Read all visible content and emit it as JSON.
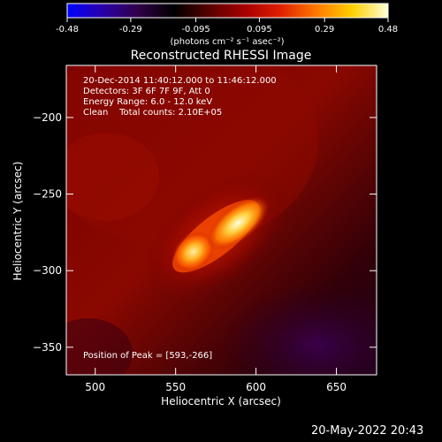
{
  "colorbar": {
    "ticks": [
      "-0.48",
      "-0.29",
      "-0.095",
      "0.095",
      "0.29",
      "0.48"
    ],
    "tick_values": [
      -0.48,
      -0.29,
      -0.095,
      0.095,
      0.29,
      0.48
    ],
    "unit_label": "(photons cm⁻² s⁻¹ asec⁻²)",
    "stops": [
      "#0000ff",
      "#2a00a8",
      "#300048",
      "#000000",
      "#5a0000",
      "#a80000",
      "#e02000",
      "#ff7a00",
      "#ffd000",
      "#ffffd8"
    ]
  },
  "chart_data": {
    "type": "heatmap",
    "title": "Reconstructed RHESSI Image",
    "xlabel": "Heliocentric X (arcsec)",
    "ylabel": "Heliocentric Y (arcsec)",
    "xlim": [
      482,
      675
    ],
    "ylim": [
      -368,
      -166
    ],
    "x_ticks": [
      500,
      550,
      600,
      650
    ],
    "y_ticks": [
      -350,
      -300,
      -250,
      -200
    ],
    "x_tick_labels": [
      "500",
      "550",
      "600",
      "650"
    ],
    "y_tick_labels": [
      "−350",
      "−300",
      "−250",
      "−200"
    ],
    "peak": [
      593,
      -266
    ],
    "sources": [
      {
        "x": 590,
        "y": -265,
        "value": 0.48
      },
      {
        "x": 560,
        "y": -290,
        "value": 0.4
      }
    ],
    "annotations": [
      "20-Dec-2014 11:40:12.000 to 11:46:12.000",
      "Detectors: 3F 6F 7F 9F, Att 0",
      "Energy Range: 6.0 - 12.0 keV",
      "Clean    Total counts: 2.10E+05"
    ],
    "peak_label": "Position of Peak = [593,-266]"
  },
  "footer": {
    "timestamp": "20-May-2022 20:43"
  }
}
